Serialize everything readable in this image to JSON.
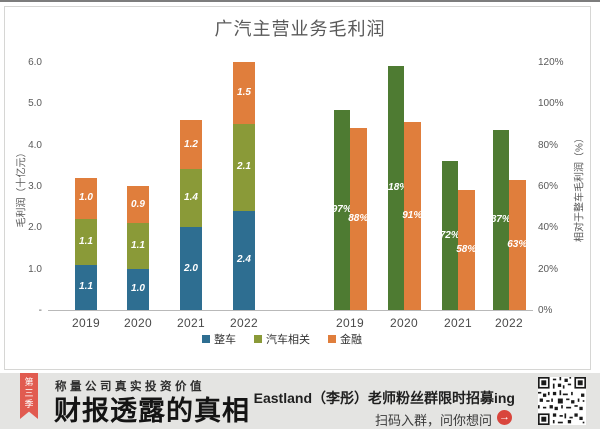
{
  "title": "广汽主营业务毛利润",
  "chart_data": [
    {
      "type": "bar",
      "subtype": "stacked",
      "categories": [
        "2019",
        "2020",
        "2021",
        "2022"
      ],
      "series": [
        {
          "name": "整车",
          "color": "#2e6e91",
          "values": [
            1.1,
            1.0,
            2.0,
            2.4
          ]
        },
        {
          "name": "汽车相关",
          "color": "#8a9a38",
          "values": [
            1.1,
            1.1,
            1.4,
            2.1
          ]
        },
        {
          "name": "金融",
          "color": "#e07e3c",
          "values": [
            1.0,
            0.9,
            1.2,
            1.5
          ]
        }
      ],
      "ylabel": "毛利润（十亿元）",
      "ylim": [
        0,
        6
      ],
      "yticks": [
        "6.0",
        "5.0",
        "4.0",
        "3.0",
        "2.0",
        "1.0",
        "-"
      ],
      "grid": false,
      "legend_position": "bottom"
    },
    {
      "type": "bar",
      "subtype": "grouped",
      "categories": [
        "2019",
        "2020",
        "2021",
        "2022"
      ],
      "series": [
        {
          "color": "#4e7b32",
          "values": [
            97,
            118,
            72,
            87
          ],
          "labels": [
            "97%",
            "118%",
            "72%",
            "87%"
          ]
        },
        {
          "color": "#e07e3c",
          "values": [
            88,
            91,
            58,
            63
          ],
          "labels": [
            "88%",
            "91%",
            "58%",
            "63%"
          ]
        }
      ],
      "ylabel": "相对于整车毛利润（%）",
      "ylim": [
        0,
        120
      ],
      "yticks": [
        "120%",
        "100%",
        "80%",
        "60%",
        "40%",
        "20%",
        "0%"
      ],
      "grid": false
    }
  ],
  "legend": [
    {
      "label": "整车",
      "color": "#2e6e91"
    },
    {
      "label": "汽车相关",
      "color": "#8a9a38"
    },
    {
      "label": "金融",
      "color": "#e07e3c"
    }
  ],
  "banner": {
    "season_ribbon": "第三季",
    "tagline": "称量公司真实投资价值",
    "headline": "财报透露的真相",
    "promo_title": "Eastland（李彤）老师粉丝群限时招募ing",
    "promo_cta": "扫码入群，问你想问",
    "icons": {
      "cta": "arrow-right-circle-icon",
      "qr": "qr-code"
    }
  },
  "colors": {
    "banner_bg": "#e4e4e2",
    "ribbon": "#e15b50",
    "cta_arrow": "#d9453c",
    "axis_text": "#595959"
  }
}
